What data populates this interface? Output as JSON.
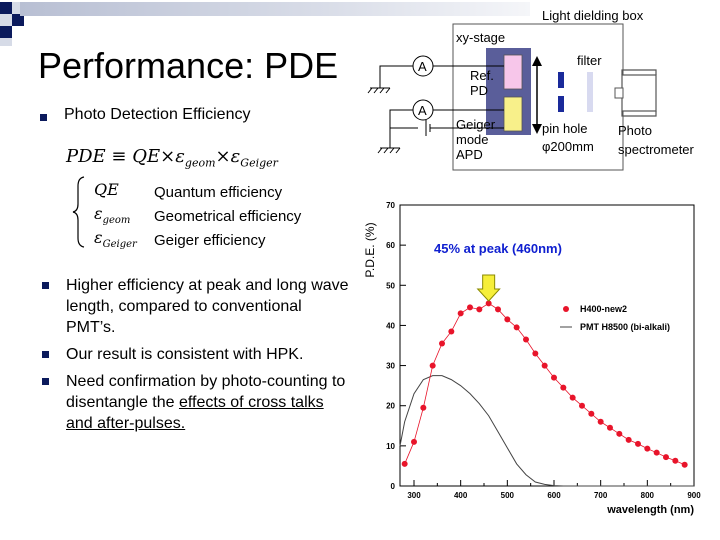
{
  "slide": {
    "title": "Performance: PDE",
    "bullet_main": "Photo Detection Efficiency",
    "formula": {
      "lhs": "PDE",
      "equiv": "≡",
      "qe": "QE",
      "times": "×",
      "eps": "ε",
      "sub_geom": "geom",
      "sub_geiger": "Geiger"
    },
    "definitions": [
      {
        "sym": "QE",
        "sub": "",
        "text": "Quantum efficiency"
      },
      {
        "sym": "ε",
        "sub": "geom",
        "text": "Geometrical efficiency"
      },
      {
        "sym": "ε",
        "sub": "Geiger",
        "text": "Geiger efficiency"
      }
    ],
    "bullets": [
      {
        "text": "Higher efficiency at peak and long wave length, compared to conventional PMT’s."
      },
      {
        "text": "Our result is consistent with HPK."
      },
      {
        "text": "Need confirmation by photo-counting to disentangle the ",
        "underlined": "effects of cross talks and after-pulses."
      }
    ]
  },
  "diagram": {
    "box_label": "Light dielding box",
    "stage_label": "xy-stage",
    "ammeter": "A",
    "ref_pd": "Ref. PD",
    "geiger_apd": "Geiger mode APD",
    "filter": "filter",
    "pinhole": "pin hole",
    "pinhole_size": "φ200mm",
    "spectrometer": "Photo spectrometer",
    "colors": {
      "stage": "#5a5e9a",
      "ref_pd": "#f7c6ea",
      "apd": "#f8f08a",
      "filter": "#d8daf0",
      "pinhole": "#1a2a9a"
    }
  },
  "chart_data": {
    "type": "scatter",
    "title": "45% at peak (460nm)",
    "xlabel": "wavelength (nm)",
    "ylabel": "P.D.E. (%)",
    "xlim": [
      270,
      900
    ],
    "ylim": [
      0,
      70
    ],
    "xticks": [
      300,
      400,
      500,
      600,
      700,
      800,
      900
    ],
    "yticks": [
      0,
      10,
      20,
      30,
      40,
      50,
      60,
      70
    ],
    "series": [
      {
        "name": "H400-new2",
        "style": "markers+line",
        "color": "#e8142a",
        "x": [
          280,
          300,
          320,
          340,
          360,
          380,
          400,
          420,
          440,
          460,
          480,
          500,
          520,
          540,
          560,
          580,
          600,
          620,
          640,
          660,
          680,
          700,
          720,
          740,
          760,
          780,
          800,
          820,
          840,
          860,
          880
        ],
        "y": [
          5.5,
          11,
          19.5,
          30,
          35.5,
          38.5,
          43,
          44.5,
          44,
          45.5,
          44,
          41.5,
          39.5,
          36.5,
          33,
          30,
          27,
          24.5,
          22,
          20,
          18,
          16,
          14.5,
          13,
          11.5,
          10.5,
          9.3,
          8.3,
          7.2,
          6.3,
          5.3
        ]
      },
      {
        "name": "PMT H8500 (bi-alkali)",
        "style": "line",
        "color": "#444444",
        "x": [
          270,
          280,
          300,
          320,
          340,
          360,
          380,
          400,
          420,
          440,
          460,
          480,
          500,
          520,
          540,
          560,
          580,
          600,
          620,
          700,
          800,
          900
        ],
        "y": [
          10,
          16,
          23,
          26.5,
          27.5,
          27.5,
          26.5,
          25,
          23,
          20.5,
          17.5,
          13.5,
          9.5,
          5.5,
          2.8,
          1,
          0.4,
          0.1,
          0,
          0,
          0,
          0
        ]
      }
    ]
  }
}
